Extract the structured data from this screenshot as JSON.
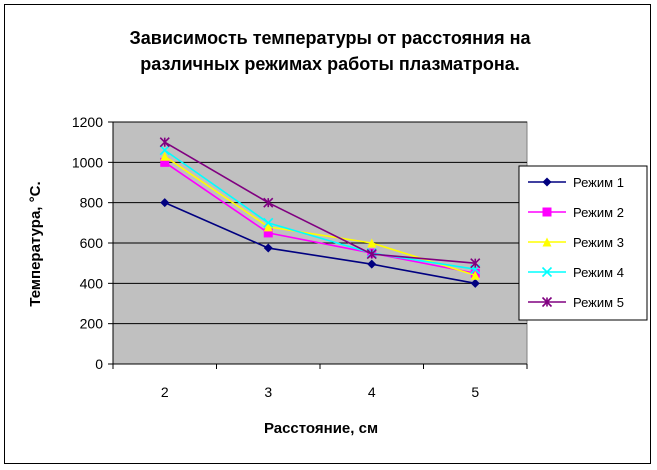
{
  "chart_data": {
    "type": "line",
    "title_lines": [
      "Зависимость температуры от расстояния на",
      "различных режимах работы плазматрона."
    ],
    "xlabel": "Расстояние, см",
    "ylabel": "Температура, °С.",
    "categories": [
      "2",
      "3",
      "4",
      "5"
    ],
    "yticks": [
      "0",
      "200",
      "400",
      "600",
      "800",
      "1000",
      "1200"
    ],
    "ylim": [
      0,
      1200
    ],
    "grid": true,
    "plot_background": "#c0c0c0",
    "legend_position": "right",
    "series": [
      {
        "name": "Режим 1",
        "values": [
          800,
          575,
          495,
          400
        ],
        "color": "#000080",
        "marker": "diamond"
      },
      {
        "name": "Режим 2",
        "values": [
          1000,
          650,
          550,
          450
        ],
        "color": "#ff00ff",
        "marker": "square"
      },
      {
        "name": "Режим 3",
        "values": [
          1030,
          680,
          600,
          440
        ],
        "color": "#ffff00",
        "marker": "triangle"
      },
      {
        "name": "Режим 4",
        "values": [
          1060,
          700,
          550,
          470
        ],
        "color": "#00ffff",
        "marker": "x"
      },
      {
        "name": "Режим 5",
        "values": [
          1100,
          800,
          545,
          500
        ],
        "color": "#800080",
        "marker": "star"
      }
    ]
  }
}
